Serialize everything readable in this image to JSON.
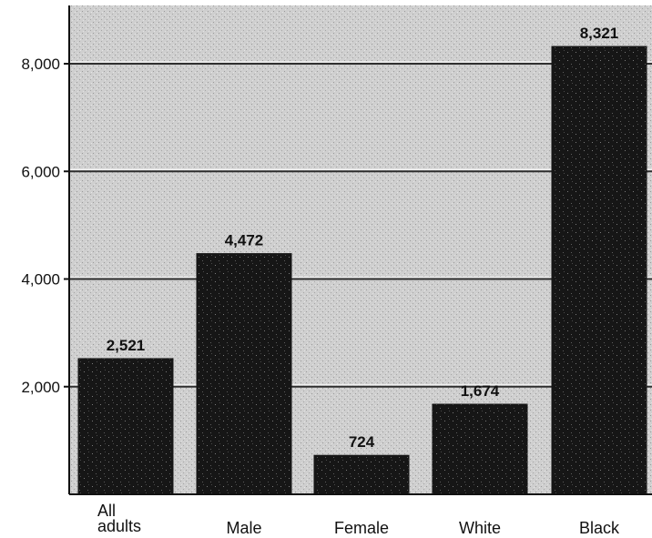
{
  "chart_data": {
    "type": "bar",
    "title": "",
    "xlabel": "",
    "ylabel": "",
    "categories": [
      [
        "All",
        "adults"
      ],
      [
        "Male"
      ],
      [
        "Female"
      ],
      [
        "White"
      ],
      [
        "Black"
      ]
    ],
    "values": [
      2521,
      4472,
      724,
      1674,
      8321
    ],
    "value_labels": [
      "2,521",
      "4,472",
      "724",
      "1,674",
      "8,321"
    ],
    "yticks": [
      2000,
      4000,
      6000,
      8000
    ],
    "ytick_labels": [
      "2,000",
      "4,000",
      "6,000",
      "8,000"
    ],
    "ylim": [
      0,
      9000
    ],
    "grid": true,
    "legend": "none"
  },
  "colors": {
    "plot_background": "#cfcfcf",
    "bar_fill": "#161616",
    "grid_line": "#2e2e2e",
    "axis": "#111111"
  }
}
